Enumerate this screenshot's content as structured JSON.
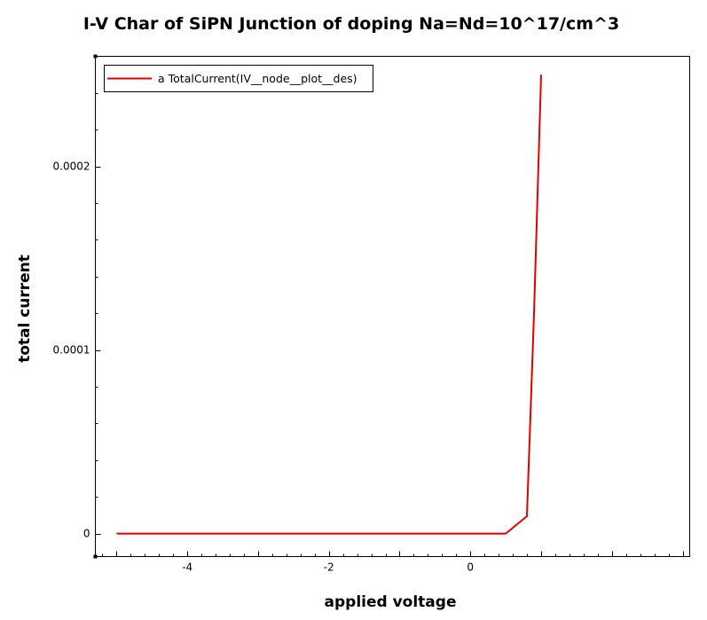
{
  "chart_data": {
    "type": "line",
    "title": "I-V Char of SiPN Junction of doping Na=Nd=10^17/cm^3",
    "xlabel": "applied voltage",
    "ylabel": "total current",
    "xlim": [
      -5.3,
      3.1
    ],
    "ylim": [
      -1.25e-05,
      0.00026
    ],
    "x_ticks": [
      -4,
      -2,
      0
    ],
    "x_tick_labels": [
      "-4",
      "-2",
      "0"
    ],
    "y_ticks": [
      0,
      0.0001,
      0.0002
    ],
    "y_tick_labels": [
      "0",
      "0.0001",
      "0.0002"
    ],
    "grid": false,
    "legend_position": "top-left",
    "series": [
      {
        "name": "a TotalCurrent(IV__node__plot__des)",
        "color": "#e00000",
        "x": [
          -5,
          -4,
          -3,
          -2,
          -1,
          0,
          0.5,
          0.8,
          0.9,
          1.0
        ],
        "y": [
          0,
          0,
          0,
          0,
          0,
          0,
          0,
          9.5e-06,
          0.00012,
          0.00025
        ]
      }
    ]
  }
}
